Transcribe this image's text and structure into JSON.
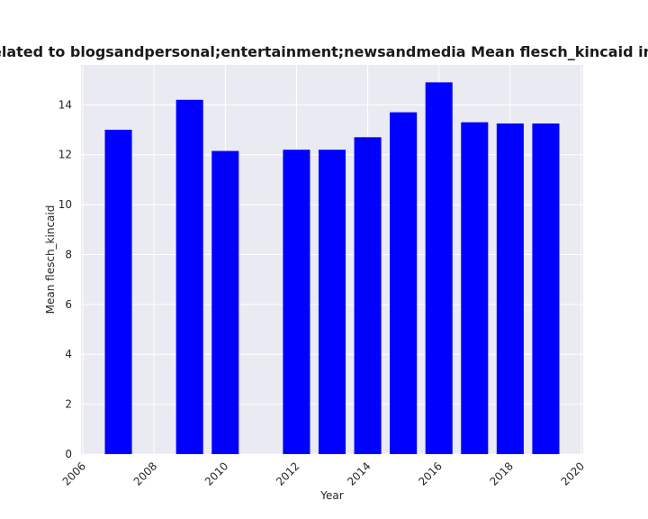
{
  "chart_data": {
    "type": "bar",
    "title": "s are related to blogsandpersonal;entertainment;newsandmedia Mean flesch_kincaid in privac",
    "xlabel": "Year",
    "ylabel": "Mean flesch_kincaid",
    "x": [
      2007,
      2009,
      2010,
      2012,
      2013,
      2014,
      2015,
      2016,
      2017,
      2018,
      2019
    ],
    "values": [
      13.0,
      14.2,
      12.15,
      12.2,
      12.2,
      12.7,
      13.7,
      14.9,
      13.3,
      13.25,
      13.25
    ],
    "xlim": [
      2005.95,
      2020.05
    ],
    "ylim": [
      0,
      15.6
    ],
    "xticks": [
      "2006",
      "2008",
      "2010",
      "2012",
      "2014",
      "2016",
      "2018",
      "2020"
    ],
    "yticks": [
      "0",
      "2",
      "4",
      "6",
      "8",
      "10",
      "12",
      "14"
    ],
    "grid": true,
    "bar_color": "#0000ff",
    "background_color": "#eaeaf2"
  }
}
